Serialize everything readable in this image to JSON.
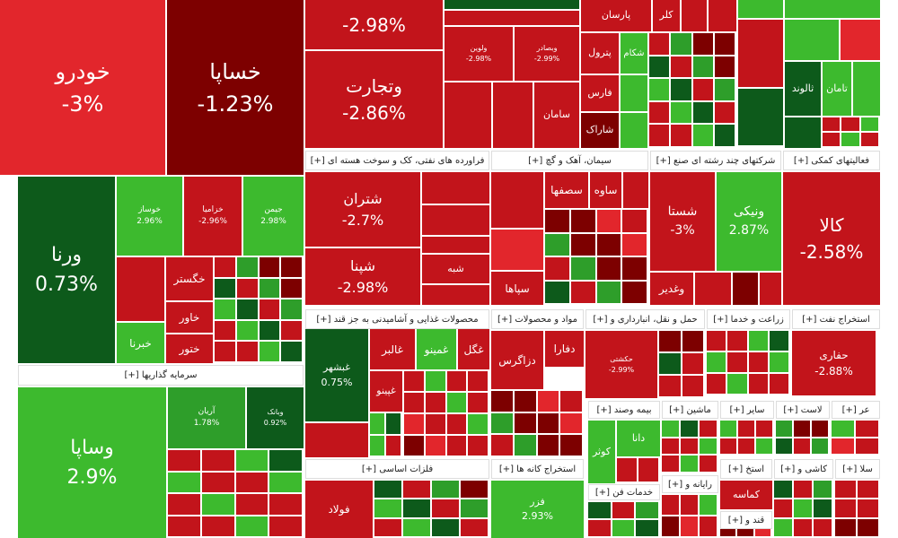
{
  "tiles": [
    {
      "label": "خودرو",
      "change": "-3%"
    },
    {
      "label": "خساپا",
      "change": "-1.23%"
    },
    {
      "label": "ورنا",
      "change": "0.73%"
    },
    {
      "label": "خوساز",
      "change": "2.96%"
    },
    {
      "label": "خزامیا",
      "change": "-2.96%"
    },
    {
      "label": "جیمن",
      "change": "2.98%"
    },
    {
      "label": "خگستر"
    },
    {
      "label": "خاور"
    },
    {
      "label": "ختور"
    },
    {
      "label": "خبرنا"
    },
    {
      "label": "وساپا",
      "change": "2.9%"
    },
    {
      "label": "آریان",
      "change": "1.78%"
    },
    {
      "label": "وبانک",
      "change": "0.92%"
    },
    {
      "change": "-2.98%"
    },
    {
      "label": "وتجارت",
      "change": "-2.86%"
    },
    {
      "label": "ولوین",
      "change": "-2.98%"
    },
    {
      "label": "وبصادر",
      "change": "-2.99%"
    },
    {
      "label": "پارسان"
    },
    {
      "label": "کلر"
    },
    {
      "label": "شکام"
    },
    {
      "label": "پترول"
    },
    {
      "label": "فارس"
    },
    {
      "label": "سامان"
    },
    {
      "label": "شاراک"
    },
    {
      "label": "ثالوند"
    },
    {
      "label": "تامان"
    },
    {
      "label": "شتران",
      "change": "-2.7%"
    },
    {
      "label": "شپنا",
      "change": "-2.98%"
    },
    {
      "label": "شبه"
    },
    {
      "label": "ساوه"
    },
    {
      "label": "سصفها"
    },
    {
      "label": "سپاها"
    },
    {
      "label": "شستا",
      "change": "-3%"
    },
    {
      "label": "ونیکی",
      "change": "2.87%"
    },
    {
      "label": "وغدیر"
    },
    {
      "label": "کالا",
      "change": "-2.58%"
    },
    {
      "label": "غبشهر",
      "change": "0.75%"
    },
    {
      "label": "غالبر"
    },
    {
      "label": "غمینو"
    },
    {
      "label": "غگل"
    },
    {
      "label": "غپینو"
    },
    {
      "label": "دزاگرس"
    },
    {
      "label": "دفارا"
    },
    {
      "label": "حکشتی",
      "change": "-2.99%"
    },
    {
      "label": "حفاری",
      "change": "-2.88%"
    },
    {
      "label": "فولاد"
    },
    {
      "label": "فزر",
      "change": "2.93%"
    },
    {
      "label": "کوثر"
    },
    {
      "label": "دانا"
    },
    {
      "label": "کماسه"
    }
  ],
  "sectors": [
    {
      "title": "سرمایه گذاریها [+]"
    },
    {
      "title": "فراورده های نفتی، کک و سوخت هسته ای [+]"
    },
    {
      "title": "سیمان، آهک و گچ [+]"
    },
    {
      "title": "شرکتهای چند رشته ای صنع [+]"
    },
    {
      "title": "فعالیتهای کمکی [+]"
    },
    {
      "title": "محصولات غذایی و آشامیدنی به جز قند [+]"
    },
    {
      "title": "مواد و محصولات [+]"
    },
    {
      "title": "حمل و نقل، انبارداری و [+]"
    },
    {
      "title": "زراعت و خدما [+]"
    },
    {
      "title": "استخراج نفت [+]"
    },
    {
      "title": "فلزات اساسی [+]"
    },
    {
      "title": "استخراج کانه ها [+]"
    },
    {
      "title": "بیمه وصند [+]"
    },
    {
      "title": "ماشین [+]"
    },
    {
      "title": "سایر [+]"
    },
    {
      "title": "لاست [+]"
    },
    {
      "title": "عر [+]"
    },
    {
      "title": "خدمات فن [+]"
    },
    {
      "title": "رایانه و [+]"
    },
    {
      "title": "استخ [+]"
    },
    {
      "title": "کاشی و [+]"
    },
    {
      "title": "سلا [+]"
    },
    {
      "title": "قند و [+]"
    }
  ]
}
